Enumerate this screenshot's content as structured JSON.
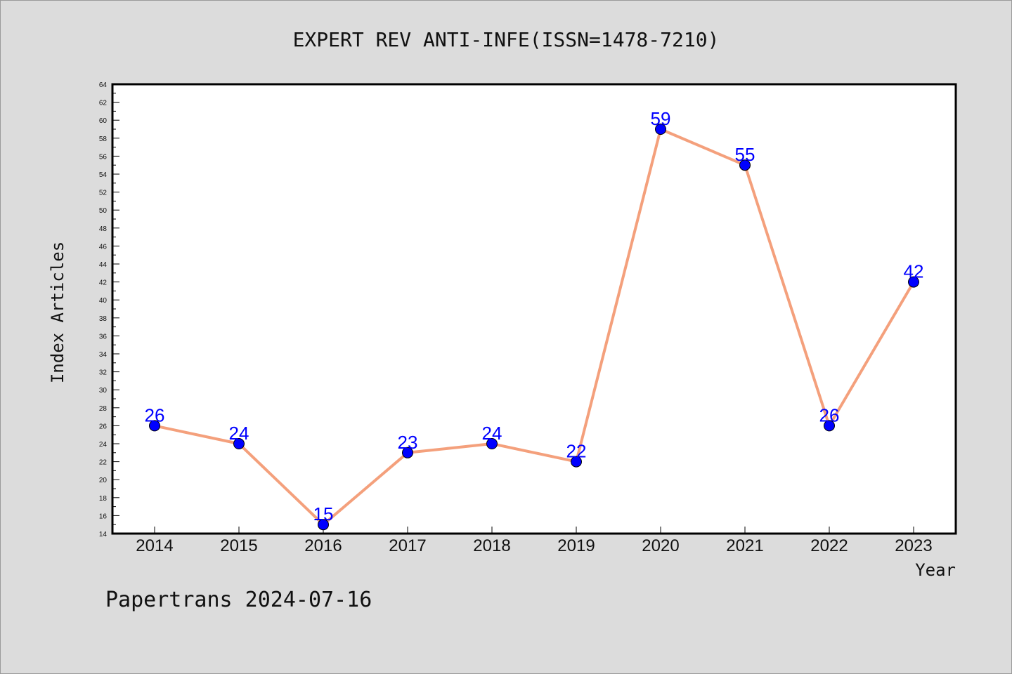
{
  "title": "EXPERT REV ANTI-INFE(ISSN=1478-7210)",
  "footer": "Papertrans 2024-07-16",
  "colors": {
    "background": "#dcdcdc",
    "plot_background": "#ffffff",
    "line": "#f4a07c",
    "marker": "#0000ff",
    "data_label": "#0000ff"
  },
  "chart_data": {
    "type": "line",
    "title": "EXPERT REV ANTI-INFE(ISSN=1478-7210)",
    "xlabel": "Year",
    "ylabel": "Index Articles",
    "categories": [
      "2014",
      "2015",
      "2016",
      "2017",
      "2018",
      "2019",
      "2020",
      "2021",
      "2022",
      "2023"
    ],
    "values": [
      26,
      24,
      15,
      23,
      24,
      22,
      59,
      55,
      26,
      42
    ],
    "ylim": [
      14,
      64
    ],
    "yticks": [
      14,
      16,
      18,
      20,
      22,
      24,
      26,
      28,
      30,
      32,
      34,
      36,
      38,
      40,
      42,
      44,
      46,
      48,
      50,
      52,
      54,
      56,
      58,
      60,
      62,
      64
    ],
    "grid": false,
    "data_labels": true
  }
}
